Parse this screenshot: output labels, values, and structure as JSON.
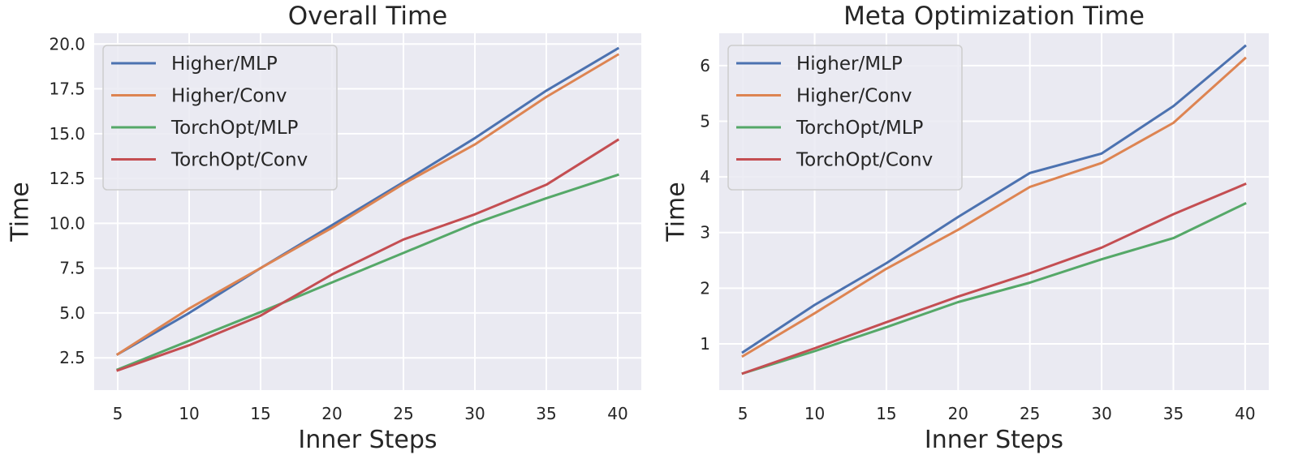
{
  "figure": {
    "background": "#ffffff",
    "plot_background": "#eaeaf2",
    "grid_color": "#ffffff",
    "series_colors": {
      "Higher/MLP": "#4c72b0",
      "Higher/Conv": "#dd8452",
      "TorchOpt/MLP": "#55a868",
      "TorchOpt/Conv": "#c44e52"
    }
  },
  "chart_data": [
    {
      "type": "line",
      "title": "Overall Time",
      "xlabel": "Inner Steps",
      "ylabel": "Time",
      "x": [
        5,
        10,
        15,
        20,
        25,
        30,
        35,
        40
      ],
      "xticks": [
        "5",
        "10",
        "15",
        "20",
        "25",
        "30",
        "35",
        "40"
      ],
      "yticks": [
        2.5,
        5.0,
        7.5,
        10.0,
        12.5,
        15.0,
        17.5,
        20.0
      ],
      "ytick_labels": [
        "2.5",
        "5.0",
        "7.5",
        "10.0",
        "12.5",
        "15.0",
        "17.5",
        "20.0"
      ],
      "xlim": [
        3.35,
        41.65
      ],
      "ylim": [
        0.7,
        20.6
      ],
      "grid": true,
      "legend": "upper-left",
      "series": [
        {
          "name": "Higher/MLP",
          "color": "#4c72b0",
          "values": [
            2.7,
            5.0,
            7.5,
            9.9,
            12.3,
            14.75,
            17.4,
            19.75
          ]
        },
        {
          "name": "Higher/Conv",
          "color": "#dd8452",
          "values": [
            2.7,
            5.25,
            7.5,
            9.75,
            12.2,
            14.4,
            17.05,
            19.4
          ]
        },
        {
          "name": "TorchOpt/MLP",
          "color": "#55a868",
          "values": [
            1.85,
            3.45,
            5.05,
            6.7,
            8.35,
            10.0,
            11.4,
            12.7
          ]
        },
        {
          "name": "TorchOpt/Conv",
          "color": "#c44e52",
          "values": [
            1.8,
            3.2,
            4.85,
            7.15,
            9.1,
            10.5,
            12.15,
            14.65
          ]
        }
      ]
    },
    {
      "type": "line",
      "title": "Meta Optimization Time",
      "xlabel": "Inner Steps",
      "ylabel": "Time",
      "x": [
        5,
        10,
        15,
        20,
        25,
        30,
        35,
        40
      ],
      "xticks": [
        "5",
        "10",
        "15",
        "20",
        "25",
        "30",
        "35",
        "40"
      ],
      "yticks": [
        1,
        2,
        3,
        4,
        5,
        6
      ],
      "ytick_labels": [
        "1",
        "2",
        "3",
        "4",
        "5",
        "6"
      ],
      "xlim": [
        3.35,
        41.65
      ],
      "ylim": [
        0.17,
        6.58
      ],
      "grid": true,
      "legend": "upper-left",
      "series": [
        {
          "name": "Higher/MLP",
          "color": "#4c72b0",
          "values": [
            0.85,
            1.7,
            2.45,
            3.28,
            4.07,
            4.42,
            5.27,
            6.35
          ]
        },
        {
          "name": "Higher/Conv",
          "color": "#dd8452",
          "values": [
            0.78,
            1.55,
            2.35,
            3.05,
            3.82,
            4.25,
            4.97,
            6.13
          ]
        },
        {
          "name": "TorchOpt/MLP",
          "color": "#55a868",
          "values": [
            0.47,
            0.87,
            1.3,
            1.75,
            2.1,
            2.52,
            2.9,
            3.52
          ]
        },
        {
          "name": "TorchOpt/Conv",
          "color": "#c44e52",
          "values": [
            0.47,
            0.92,
            1.39,
            1.85,
            2.27,
            2.73,
            3.33,
            3.87
          ]
        }
      ]
    }
  ]
}
